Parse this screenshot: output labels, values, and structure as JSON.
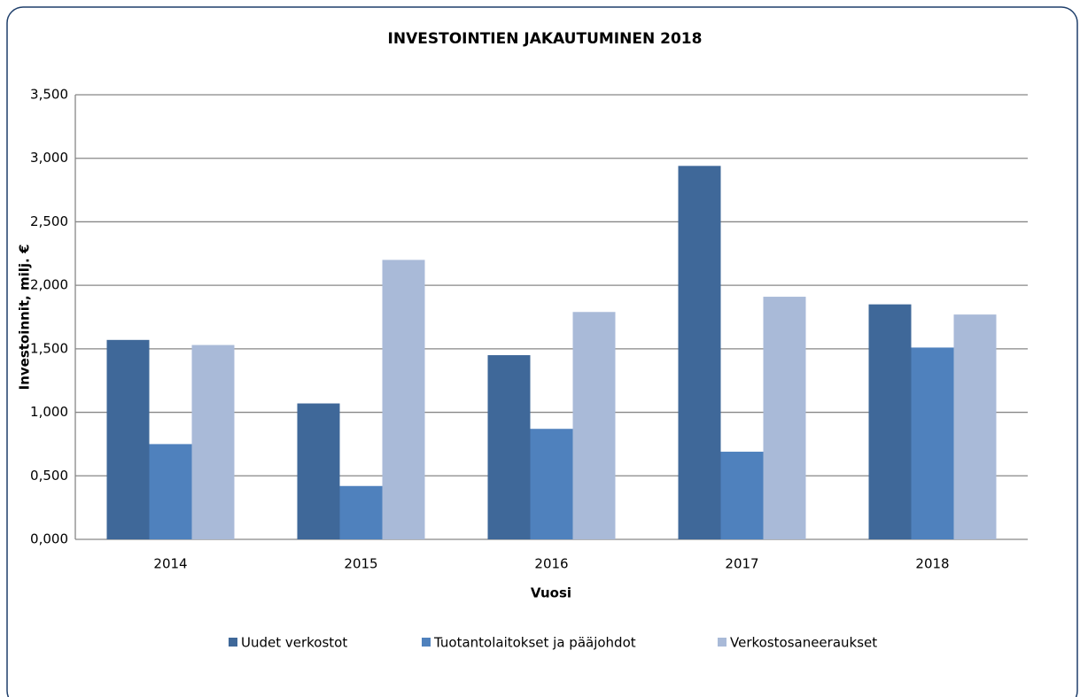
{
  "chart_data": {
    "type": "bar",
    "title": "INVESTOINTIEN JAKAUTUMINEN 2018",
    "y_label": "Investoinnit, milj. €",
    "x_label": "Vuosi",
    "categories": [
      "2014",
      "2015",
      "2016",
      "2017",
      "2018"
    ],
    "series": [
      {
        "name": "Uudet verkostot",
        "color": "#3f6899",
        "values": [
          1.57,
          1.07,
          1.45,
          2.94,
          1.85
        ]
      },
      {
        "name": "Tuotantolaitokset ja pääjohdot",
        "color": "#4f81bd",
        "values": [
          0.75,
          0.42,
          0.87,
          0.69,
          1.51
        ]
      },
      {
        "name": "Verkostosaneeraukset",
        "color": "#a9bad8",
        "values": [
          1.53,
          2.2,
          1.79,
          1.91,
          1.77
        ]
      }
    ],
    "ylim": [
      0,
      3.5
    ],
    "yticks": [
      {
        "value": 0,
        "label": "0,000"
      },
      {
        "value": 0.5,
        "label": "0,500"
      },
      {
        "value": 1,
        "label": "1,000"
      },
      {
        "value": 1.5,
        "label": "1,500"
      },
      {
        "value": 2,
        "label": "2,000"
      },
      {
        "value": 2.5,
        "label": "2,500"
      },
      {
        "value": 3,
        "label": "3,000"
      },
      {
        "value": 3.5,
        "label": "3,500"
      }
    ],
    "grid": true,
    "legend": "bottom"
  }
}
